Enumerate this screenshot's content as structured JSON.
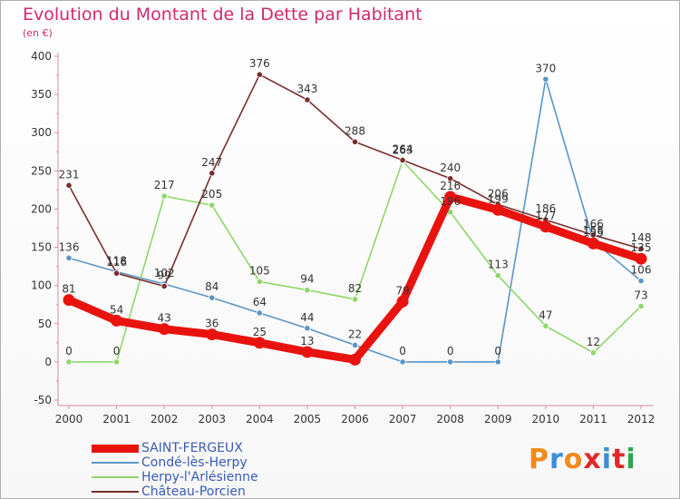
{
  "title": "Evolution du Montant de la Dette par Habitant",
  "unit": "(en €)",
  "brand": {
    "text": "Proxiti",
    "colors": [
      "#f08a1c",
      "#3a8fd8",
      "#f08a1c",
      "#e02a2a",
      "#3a8fd8",
      "#e02a2a",
      "#2aa84a"
    ]
  },
  "chart_data": {
    "type": "line",
    "title": "Evolution du Montant de la Dette par Habitant",
    "ylabel": "(en €)",
    "xlabel": "",
    "ylim": [
      -50,
      400
    ],
    "yticks": [
      -50,
      0,
      50,
      100,
      150,
      200,
      250,
      300,
      350,
      400
    ],
    "x": [
      "2000",
      "2001",
      "2002",
      "2003",
      "2004",
      "2005",
      "2006",
      "2007",
      "2008",
      "2009",
      "2010",
      "2011",
      "2012"
    ],
    "grid": false,
    "legend_position": "bottom-left",
    "series": [
      {
        "name": "SAINT-FERGEUX",
        "color": "#e8130f",
        "emphasis": true,
        "values": [
          81,
          54,
          43,
          36,
          25,
          13,
          3,
          79,
          216,
          199,
          177,
          155,
          135
        ],
        "labels": [
          "81",
          "54",
          "43",
          "36",
          "25",
          "13",
          "",
          "79",
          "216",
          "199",
          "177",
          "155",
          "135"
        ]
      },
      {
        "name": "Condé-lès-Herpy",
        "color": "#5b95c8",
        "emphasis": false,
        "values": [
          136,
          118,
          102,
          84,
          64,
          44,
          22,
          0,
          0,
          0,
          370,
          158,
          106
        ],
        "labels": [
          "136",
          "118",
          "102",
          "84",
          "64",
          "44",
          "22",
          "0",
          "0",
          "0",
          "370",
          "158",
          "106"
        ]
      },
      {
        "name": "Herpy-l'Arlésienne",
        "color": "#8fd66b",
        "emphasis": false,
        "values": [
          0,
          0,
          217,
          205,
          105,
          94,
          82,
          263,
          196,
          113,
          47,
          12,
          73
        ],
        "labels": [
          "0",
          "0",
          "217",
          "205",
          "105",
          "94",
          "82",
          "263",
          "196",
          "113",
          "47",
          "12",
          "73"
        ]
      },
      {
        "name": "Château-Porcien",
        "color": "#7a2e2e",
        "emphasis": false,
        "values": [
          231,
          116,
          99,
          247,
          376,
          343,
          288,
          264,
          240,
          206,
          186,
          166,
          148
        ],
        "labels": [
          "231",
          "116",
          "99",
          "247",
          "376",
          "343",
          "288",
          "264",
          "240",
          "206",
          "186",
          "166",
          "148"
        ]
      }
    ]
  }
}
